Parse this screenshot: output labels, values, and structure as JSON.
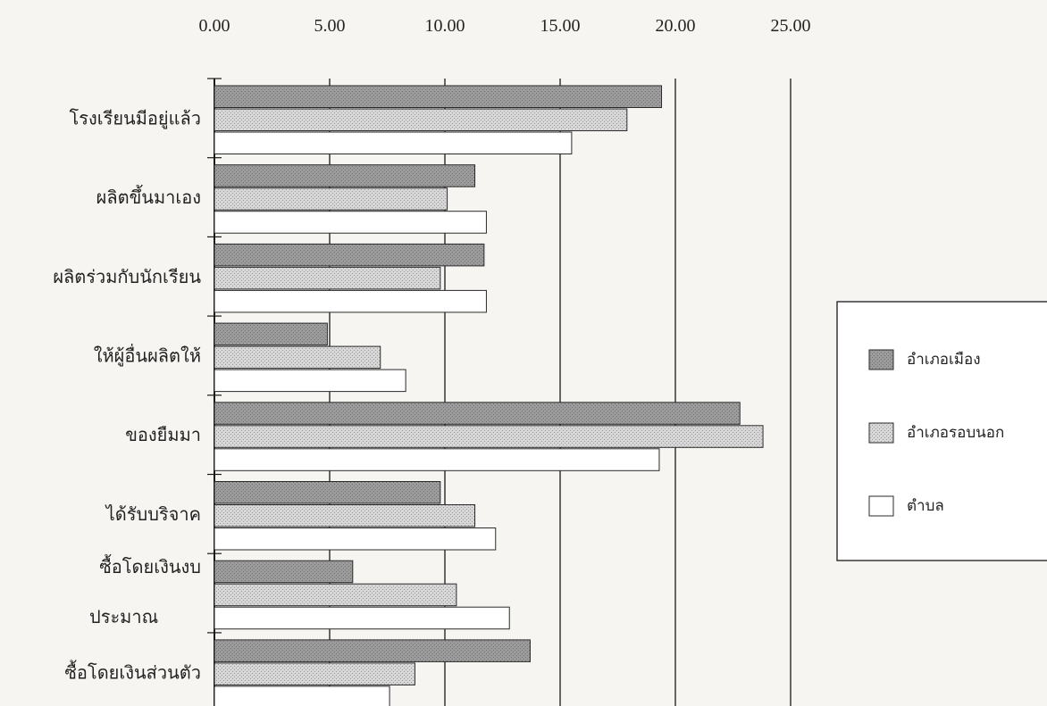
{
  "chart_data": {
    "type": "bar",
    "orientation": "horizontal",
    "categories": [
      "โรงเรียนมีอยู่แล้ว",
      "ผลิตขึ้นมาเอง",
      "ผลิตร่วมกับนักเรียน",
      "ให้ผู้อื่นผลิตให้",
      "ของยืมมา",
      "ได้รับบริจาค",
      "ซื้อโดยเงินงบประมาณ",
      "ซื้อโดยเงินส่วนตัว"
    ],
    "category_label_lines": [
      [
        "โรงเรียนมีอยู่แล้ว"
      ],
      [
        "ผลิตขึ้นมาเอง"
      ],
      [
        "ผลิตร่วมกับนักเรียน"
      ],
      [
        "ให้ผู้อื่นผลิตให้"
      ],
      [
        "ของยืมมา"
      ],
      [
        "ได้รับบริจาค"
      ],
      [
        "ซื้อโดยเงินงบ",
        "ประมาณ"
      ],
      [
        "ซื้อโดยเงินส่วนตัว"
      ]
    ],
    "series": [
      {
        "name": "อำเภอเมือง",
        "values": [
          19.4,
          11.3,
          11.7,
          4.9,
          22.8,
          9.8,
          6.0,
          13.7
        ],
        "fill": "#9c9c9c"
      },
      {
        "name": "อำเภอรอบนอก",
        "values": [
          17.9,
          10.1,
          9.8,
          7.2,
          23.8,
          11.3,
          10.5,
          8.7
        ],
        "fill": "#d7d7d7"
      },
      {
        "name": "ตำบล",
        "values": [
          15.5,
          11.8,
          11.8,
          8.3,
          19.3,
          12.2,
          12.8,
          7.6
        ],
        "fill": "#ffffff"
      }
    ],
    "x_ticks": [
      "0.00",
      "5.00",
      "10.00",
      "15.00",
      "20.00",
      "25.00"
    ],
    "xlim": [
      0,
      25
    ],
    "grid": true,
    "legend_position": "right",
    "title": "",
    "xlabel": "",
    "ylabel": ""
  }
}
